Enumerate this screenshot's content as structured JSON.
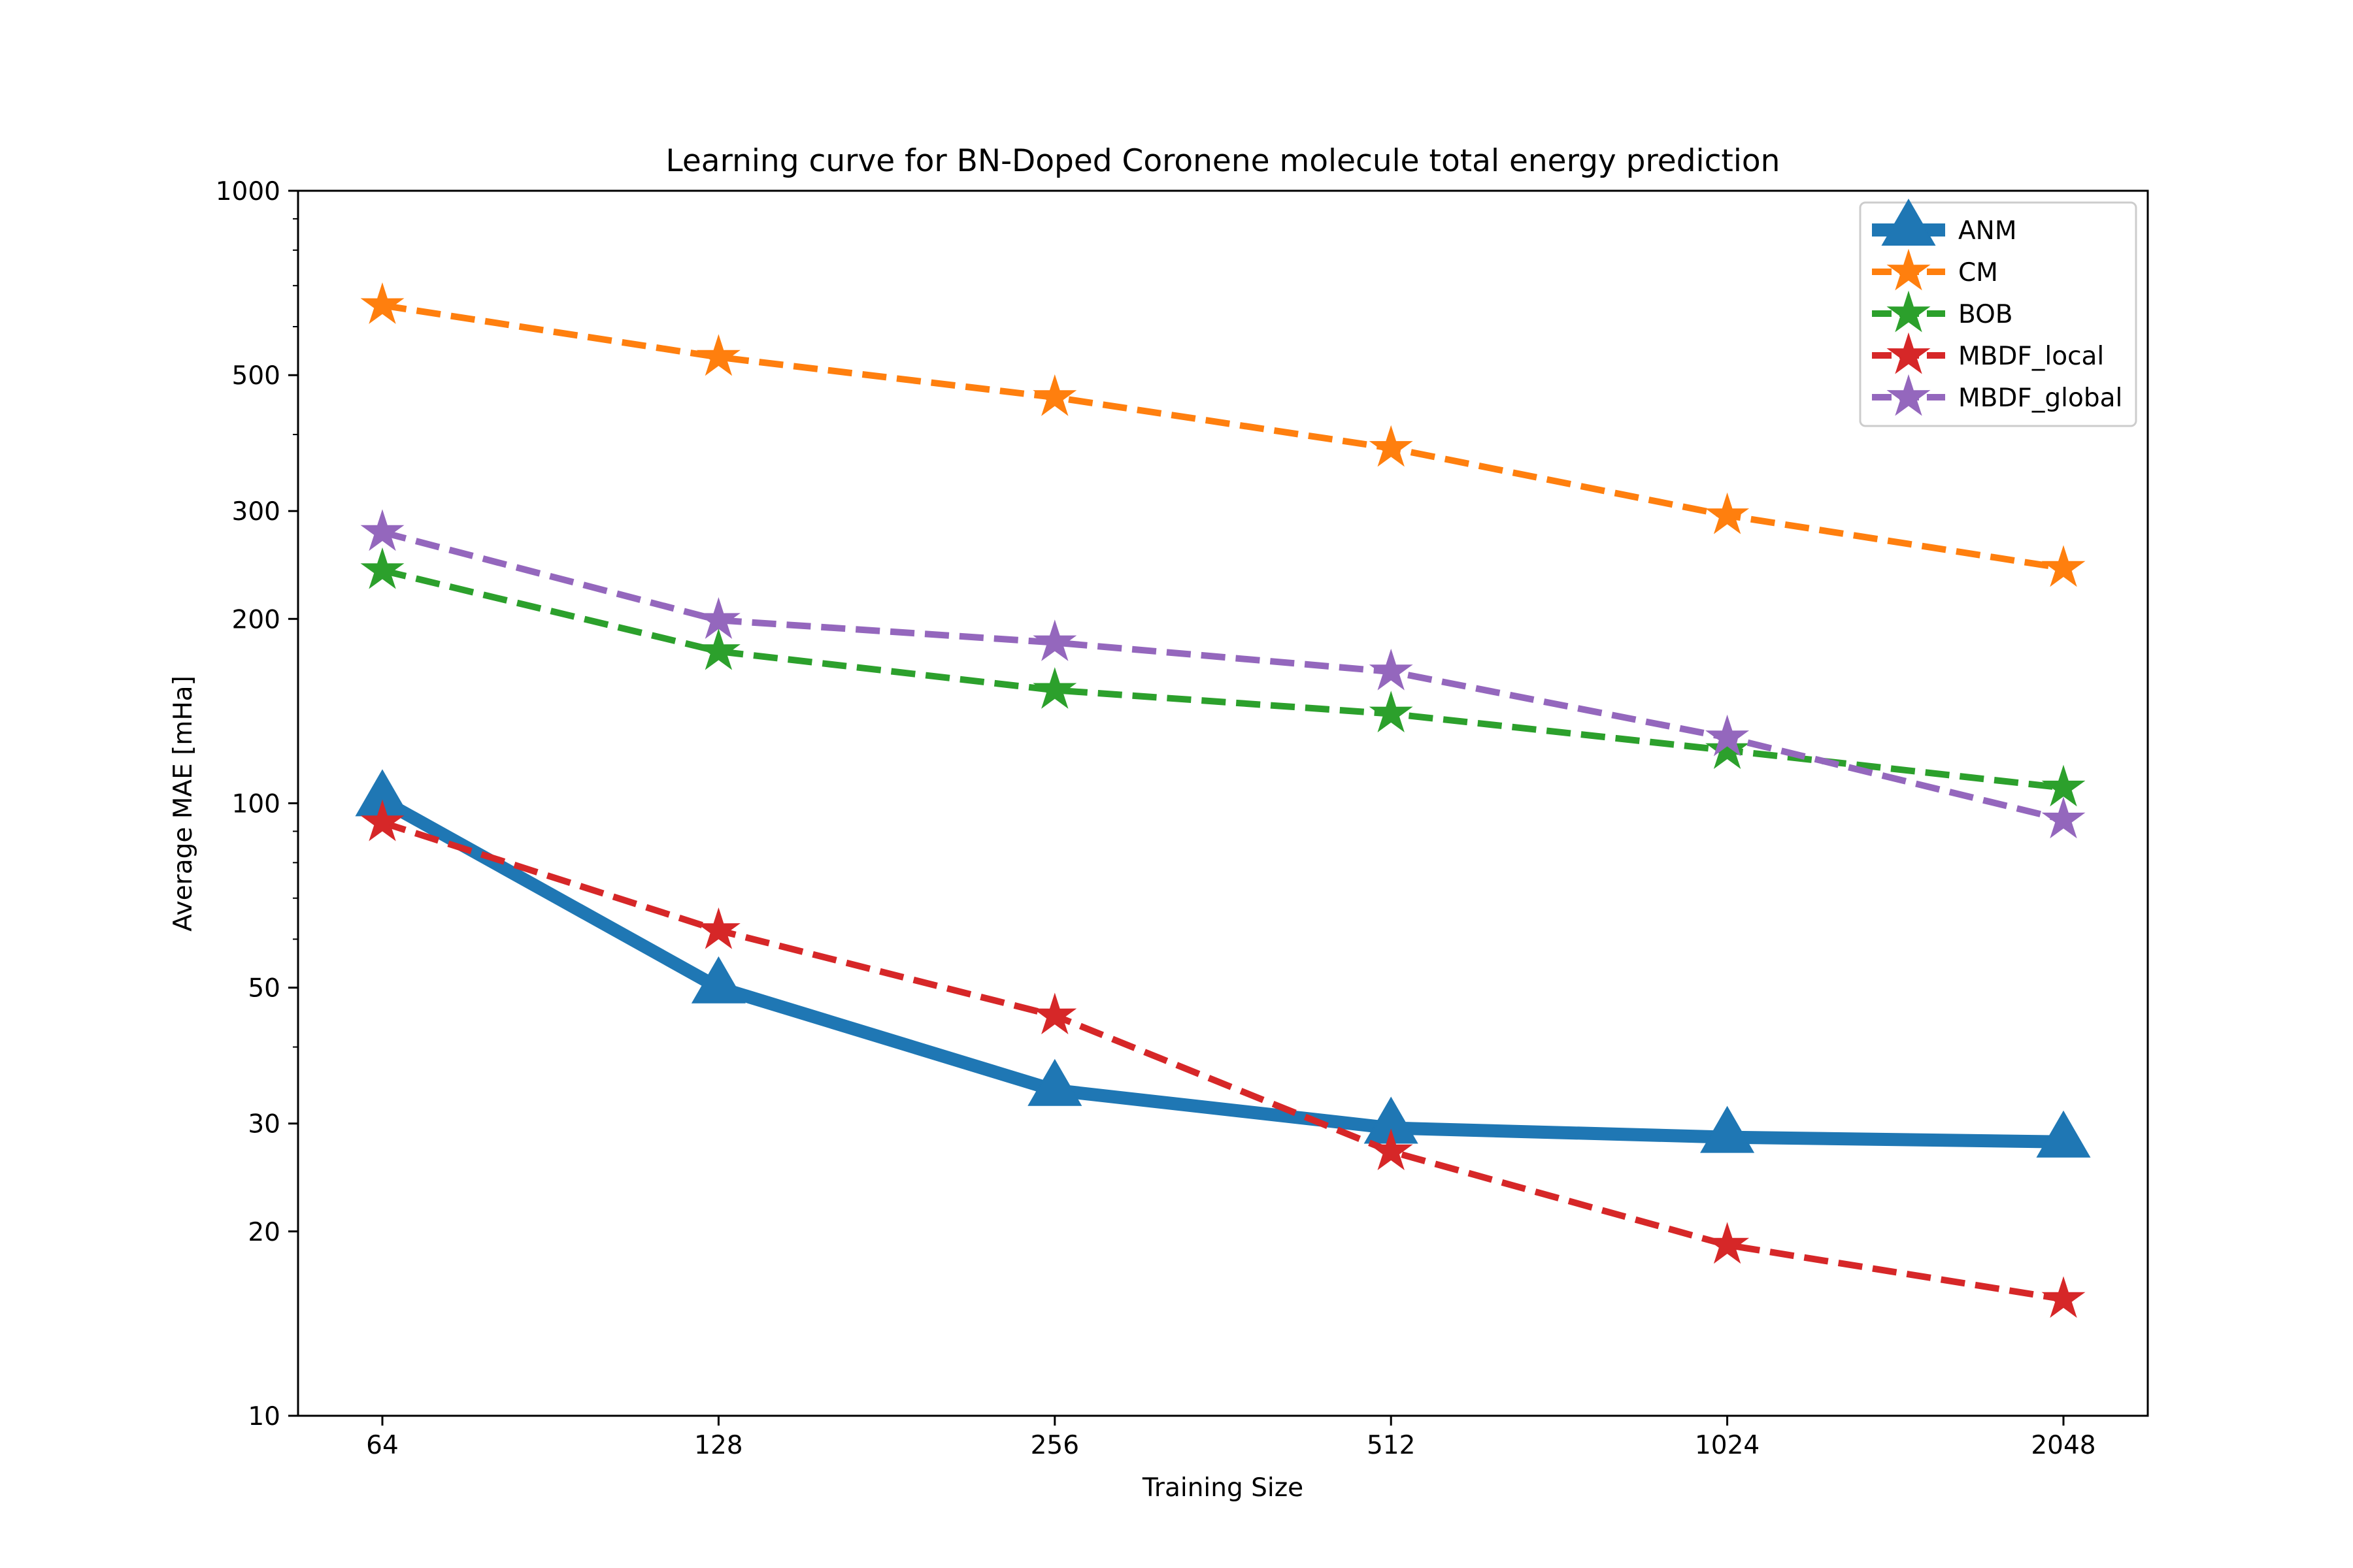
{
  "chart_data": {
    "type": "line",
    "title": "Learning curve for BN-Doped Coronene molecule total energy prediction",
    "xlabel": "Training Size",
    "ylabel": "Average MAE [mHa]",
    "x": [
      64,
      128,
      256,
      512,
      1024,
      2048
    ],
    "x_tick_labels": [
      "64",
      "128",
      "256",
      "512",
      "1024",
      "2048"
    ],
    "xscale": "log2",
    "yscale": "log",
    "ylim": [
      10,
      1000
    ],
    "y_ticks": [
      10,
      20,
      30,
      50,
      100,
      200,
      300,
      500,
      1000
    ],
    "y_tick_labels": [
      "10",
      "20",
      "30",
      "50",
      "100",
      "200",
      "300",
      "500",
      "1000"
    ],
    "grid": false,
    "legend_position": "top-right",
    "series": [
      {
        "name": "ANM",
        "color": "#1f77b4",
        "linestyle": "solid",
        "marker": "triangle",
        "values": [
          101,
          50,
          34,
          29.5,
          28.5,
          28
        ]
      },
      {
        "name": "CM",
        "color": "#ff7f0e",
        "linestyle": "dashed",
        "marker": "star",
        "values": [
          650,
          535,
          460,
          380,
          295,
          242
        ]
      },
      {
        "name": "BOB",
        "color": "#2ca02c",
        "linestyle": "dashed",
        "marker": "star",
        "values": [
          240,
          177,
          153,
          140,
          122,
          106
        ]
      },
      {
        "name": "MBDF_local",
        "color": "#d62728",
        "linestyle": "dashed",
        "marker": "star",
        "values": [
          93,
          62,
          45,
          27,
          19,
          15.5
        ]
      },
      {
        "name": "MBDF_global",
        "color": "#9467bd",
        "linestyle": "dashed",
        "marker": "star",
        "values": [
          277,
          199,
          183,
          164,
          128,
          94
        ]
      }
    ]
  }
}
